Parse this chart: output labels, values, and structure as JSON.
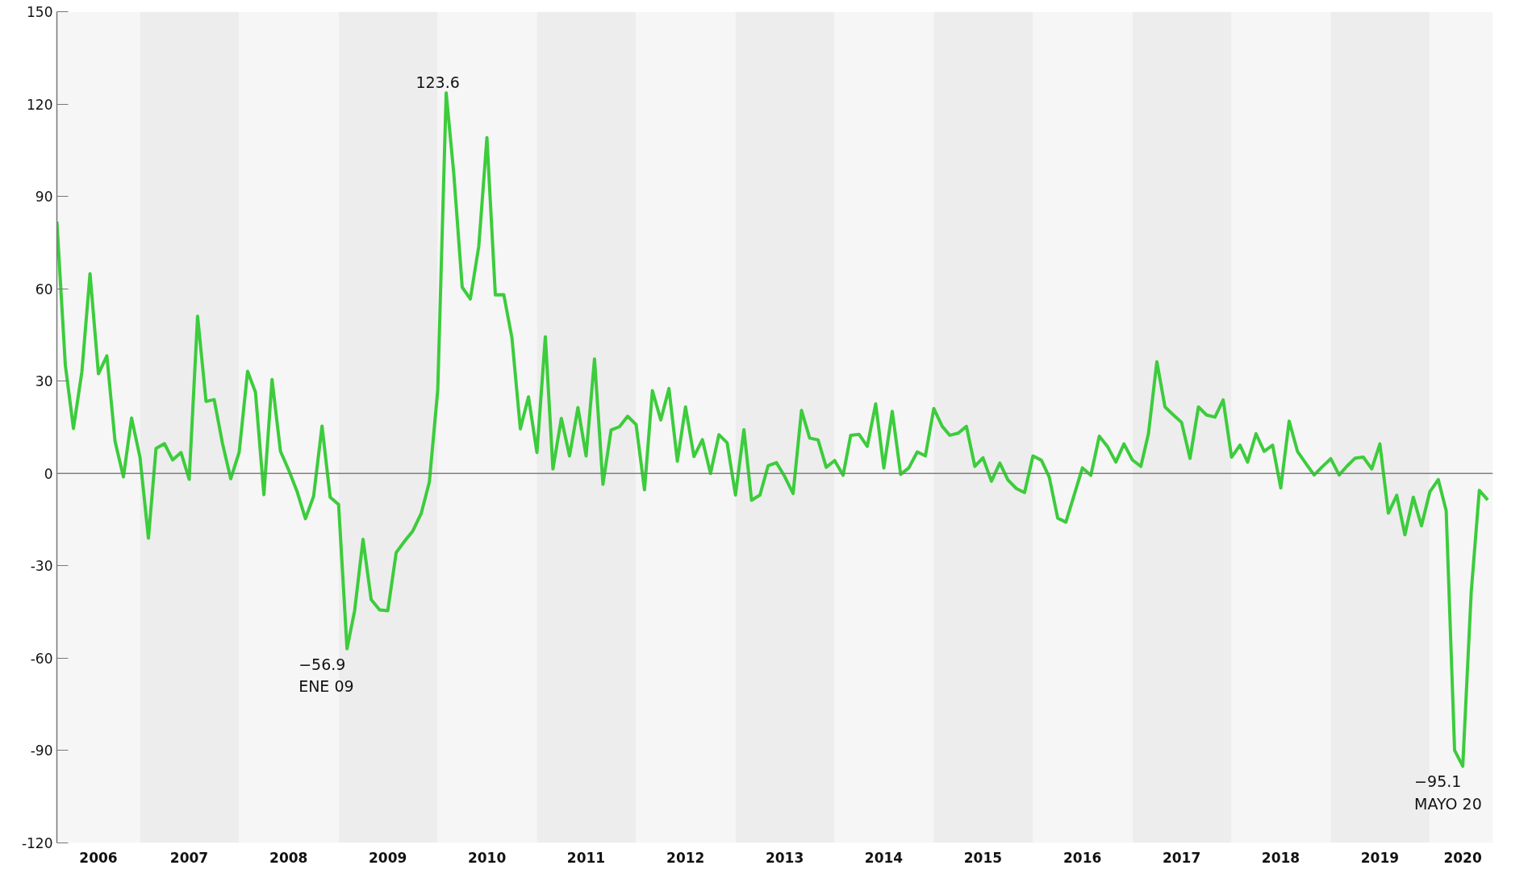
{
  "chart_data": {
    "type": "line",
    "x": [
      "2006-03",
      "2006-04",
      "2006-05",
      "2006-06",
      "2006-07",
      "2006-08",
      "2006-09",
      "2006-10",
      "2006-11",
      "2006-12",
      "2007-01",
      "2007-02",
      "2007-03",
      "2007-04",
      "2007-05",
      "2007-06",
      "2007-07",
      "2007-08",
      "2007-09",
      "2007-10",
      "2007-11",
      "2007-12",
      "2008-01",
      "2008-02",
      "2008-03",
      "2008-04",
      "2008-05",
      "2008-06",
      "2008-07",
      "2008-08",
      "2008-09",
      "2008-10",
      "2008-11",
      "2008-12",
      "2009-01",
      "2009-02",
      "2009-03",
      "2009-04",
      "2009-05",
      "2009-06",
      "2009-07",
      "2009-08",
      "2009-09",
      "2009-10",
      "2009-11",
      "2009-12",
      "2010-01",
      "2010-02",
      "2010-03",
      "2010-04",
      "2010-05",
      "2010-06",
      "2010-07",
      "2010-08",
      "2010-09",
      "2010-10",
      "2010-11",
      "2010-12",
      "2011-01",
      "2011-02",
      "2011-03",
      "2011-04",
      "2011-05",
      "2011-06",
      "2011-07",
      "2011-08",
      "2011-09",
      "2011-10",
      "2011-11",
      "2011-12",
      "2012-01",
      "2012-02",
      "2012-03",
      "2012-04",
      "2012-05",
      "2012-06",
      "2012-07",
      "2012-08",
      "2012-09",
      "2012-10",
      "2012-11",
      "2012-12",
      "2013-01",
      "2013-02",
      "2013-03",
      "2013-04",
      "2013-05",
      "2013-06",
      "2013-07",
      "2013-08",
      "2013-09",
      "2013-10",
      "2013-11",
      "2013-12",
      "2014-01",
      "2014-02",
      "2014-03",
      "2014-04",
      "2014-05",
      "2014-06",
      "2014-07",
      "2014-08",
      "2014-09",
      "2014-10",
      "2014-11",
      "2014-12",
      "2015-01",
      "2015-02",
      "2015-03",
      "2015-04",
      "2015-05",
      "2015-06",
      "2015-07",
      "2015-08",
      "2015-09",
      "2015-10",
      "2015-11",
      "2015-12",
      "2016-01",
      "2016-02",
      "2016-03",
      "2016-04",
      "2016-05",
      "2016-06",
      "2016-07",
      "2016-08",
      "2016-09",
      "2016-10",
      "2016-11",
      "2016-12",
      "2017-01",
      "2017-02",
      "2017-03",
      "2017-04",
      "2017-05",
      "2017-06",
      "2017-07",
      "2017-08",
      "2017-09",
      "2017-10",
      "2017-11",
      "2017-12",
      "2018-01",
      "2018-02",
      "2018-03",
      "2018-04",
      "2018-05",
      "2018-06",
      "2018-07",
      "2018-08",
      "2018-09",
      "2018-10",
      "2018-11",
      "2018-12",
      "2019-01",
      "2019-02",
      "2019-03",
      "2019-04",
      "2019-05",
      "2019-06",
      "2019-07",
      "2019-08",
      "2019-09",
      "2019-10",
      "2019-11",
      "2019-12",
      "2020-01",
      "2020-02",
      "2020-03",
      "2020-04",
      "2020-05",
      "2020-06",
      "2020-07",
      "2020-08"
    ],
    "series": [
      {
        "color": "#3ccc3c",
        "values": [
          81.8,
          35.3,
          14.6,
          33.0,
          64.9,
          32.4,
          38.2,
          10.5,
          -1.1,
          18.0,
          5.2,
          -21.0,
          8.1,
          9.7,
          4.4,
          6.8,
          -1.9,
          51.1,
          23.4,
          24.0,
          9.6,
          -1.7,
          6.9,
          33.2,
          26.4,
          -6.9,
          30.5,
          7.2,
          1.2,
          -5.8,
          -14.7,
          -7.4,
          15.4,
          -7.7,
          -10.1,
          -56.9,
          -44.6,
          -21.4,
          -41.0,
          -44.3,
          -44.6,
          -25.7,
          -22.0,
          -18.7,
          -13.0,
          -2.8,
          27.1,
          123.6,
          97.4,
          60.5,
          56.7,
          73.8,
          109.1,
          58.0,
          58.1,
          44.1,
          14.5,
          24.9,
          6.8,
          44.4,
          1.5,
          17.9,
          5.7,
          21.4,
          5.7,
          37.2,
          -3.5,
          14.1,
          15.2,
          18.6,
          15.9,
          -5.3,
          26.9,
          17.4,
          27.6,
          4.0,
          21.6,
          5.5,
          11.0,
          0,
          12.6,
          10.0,
          -7.0,
          14.2,
          -8.7,
          -7.0,
          2.5,
          3.5,
          -1.0,
          -6.5,
          20.5,
          11.5,
          10.9,
          2.0,
          4.2,
          -0.6,
          12.4,
          12.7,
          8.8,
          22.6,
          1.8,
          20.2,
          -0.3,
          1.8,
          7.0,
          5.7,
          21.1,
          15.3,
          12.4,
          13.1,
          15.3,
          2.3,
          5.1,
          -2.5,
          3.4,
          -2.1,
          -4.9,
          -6.2,
          5.7,
          4.3,
          -1.2,
          -14.5,
          -15.8,
          -6.9,
          1.8,
          -0.6,
          12.1,
          8.8,
          3.7,
          9.6,
          4.4,
          2.3,
          12.9,
          36.3,
          21.6,
          19.0,
          16.6,
          4.9,
          21.6,
          19.0,
          18.3,
          23.9,
          5.3,
          9.2,
          3.7,
          12.9,
          7.2,
          9.2,
          -4.7,
          17.0,
          7.1,
          3.3,
          -0.5,
          2.2,
          4.8,
          -0.5,
          2.3,
          5.0,
          5.3,
          1.5,
          9.6,
          -12.9,
          -7.1,
          -19.9,
          -7.7,
          -17.0,
          -5.9,
          -2.0,
          -12.1,
          -89.9,
          -95.1,
          -38.8,
          -5.5,
          -8.6
        ]
      }
    ],
    "xlim": [
      "2006-03-01",
      "2020-08-20"
    ],
    "xticks": [
      {
        "value": "2006-08-01",
        "label": "2006"
      },
      {
        "value": "2007-07-01",
        "label": "2007"
      },
      {
        "value": "2008-07-01",
        "label": "2008"
      },
      {
        "value": "2009-07-01",
        "label": "2009"
      },
      {
        "value": "2010-07-01",
        "label": "2010"
      },
      {
        "value": "2011-07-01",
        "label": "2011"
      },
      {
        "value": "2012-07-01",
        "label": "2012"
      },
      {
        "value": "2013-07-01",
        "label": "2013"
      },
      {
        "value": "2014-07-01",
        "label": "2014"
      },
      {
        "value": "2015-07-01",
        "label": "2015"
      },
      {
        "value": "2016-07-01",
        "label": "2016"
      },
      {
        "value": "2017-07-01",
        "label": "2017"
      },
      {
        "value": "2018-07-01",
        "label": "2018"
      },
      {
        "value": "2019-07-01",
        "label": "2019"
      },
      {
        "value": "2020-05-01",
        "label": "2020"
      }
    ],
    "ylim": [
      -120,
      150
    ],
    "yticks": [
      -120,
      -90,
      -60,
      -30,
      0,
      30,
      60,
      90,
      120,
      150
    ],
    "grid": false,
    "line_style": "solid",
    "marker": "none",
    "ref_lines": [
      {
        "axis": "y",
        "value": 0,
        "color": "#808080"
      }
    ],
    "bands": [
      {
        "axis": "x",
        "from": "2006-03-01",
        "to": "2007-01-01",
        "color": "#f6f6f6"
      },
      {
        "axis": "x",
        "from": "2007-01-01",
        "to": "2008-01-01",
        "color": "#ededed"
      },
      {
        "axis": "x",
        "from": "2008-01-01",
        "to": "2009-01-01",
        "color": "#f6f6f6"
      },
      {
        "axis": "x",
        "from": "2009-01-01",
        "to": "2010-01-01",
        "color": "#ededed"
      },
      {
        "axis": "x",
        "from": "2010-01-01",
        "to": "2011-01-01",
        "color": "#f6f6f6"
      },
      {
        "axis": "x",
        "from": "2011-01-01",
        "to": "2012-01-01",
        "color": "#ededed"
      },
      {
        "axis": "x",
        "from": "2012-01-01",
        "to": "2013-01-01",
        "color": "#f6f6f6"
      },
      {
        "axis": "x",
        "from": "2013-01-01",
        "to": "2014-01-01",
        "color": "#ededed"
      },
      {
        "axis": "x",
        "from": "2014-01-01",
        "to": "2015-01-01",
        "color": "#f6f6f6"
      },
      {
        "axis": "x",
        "from": "2015-01-01",
        "to": "2016-01-01",
        "color": "#ededed"
      },
      {
        "axis": "x",
        "from": "2016-01-01",
        "to": "2017-01-01",
        "color": "#f6f6f6"
      },
      {
        "axis": "x",
        "from": "2017-01-01",
        "to": "2018-01-01",
        "color": "#ededed"
      },
      {
        "axis": "x",
        "from": "2018-01-01",
        "to": "2019-01-01",
        "color": "#f6f6f6"
      },
      {
        "axis": "x",
        "from": "2019-01-01",
        "to": "2020-01-01",
        "color": "#ededed"
      },
      {
        "axis": "x",
        "from": "2020-01-01",
        "to": "2020-08-20",
        "color": "#f6f6f6"
      }
    ],
    "annotations": [
      {
        "text": "123.6",
        "x": "2010-01",
        "y": 123.6
      },
      {
        "text": "−56.9\nENE 09",
        "x": "2009-02",
        "y": -56.9
      },
      {
        "text": "−95.1\nMAYO 20",
        "x": "2020-05",
        "y": -95.1
      }
    ]
  }
}
